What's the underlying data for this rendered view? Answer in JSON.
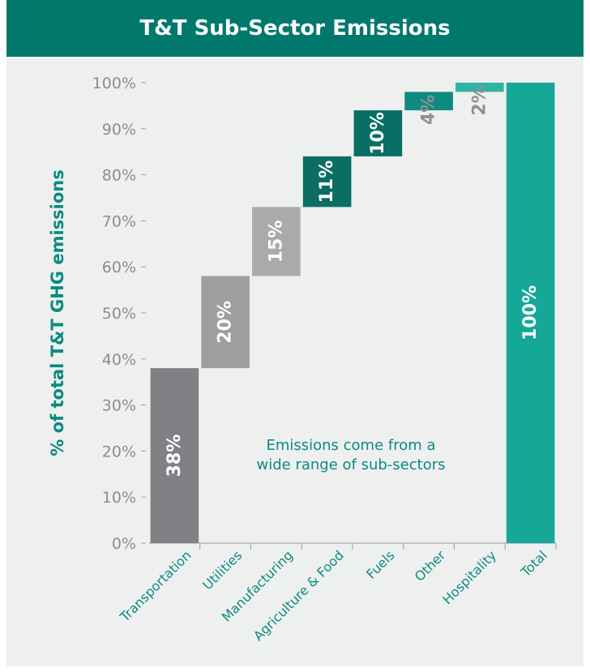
{
  "chart_data": {
    "type": "bar",
    "subtype": "waterfall",
    "title": "T&T Sub-Sector Emissions",
    "ylabel": "% of total T&T GHG emissions",
    "xlabel": "",
    "ylim": [
      0,
      100
    ],
    "yticks": [
      "0%",
      "10%",
      "20%",
      "30%",
      "40%",
      "50%",
      "60%",
      "70%",
      "80%",
      "90%",
      "100%"
    ],
    "categories": [
      "Transportation",
      "Utilities",
      "Manufacturing",
      "Agriculture & Food",
      "Fuels",
      "Other",
      "Hospitality",
      "Total"
    ],
    "values": [
      38,
      20,
      15,
      11,
      10,
      4,
      2,
      100
    ],
    "data_labels": [
      "38%",
      "20%",
      "15%",
      "11%",
      "10%",
      "4%",
      "2%",
      "100%"
    ],
    "colors": [
      "#7f8184",
      "#9c9ea0",
      "#a8aaac",
      "#0a6e64",
      "#0a6e64",
      "#0f8a7e",
      "#2fb3a4",
      "#15a898"
    ],
    "label_colors": [
      "#ffffff",
      "#ffffff",
      "#ffffff",
      "#ffffff",
      "#ffffff",
      "#8f9193",
      "#8f9193",
      "#ffffff"
    ],
    "annotation": [
      "Emissions come from a",
      "wide range of sub-sectors"
    ],
    "grid": false,
    "legend": "none"
  }
}
